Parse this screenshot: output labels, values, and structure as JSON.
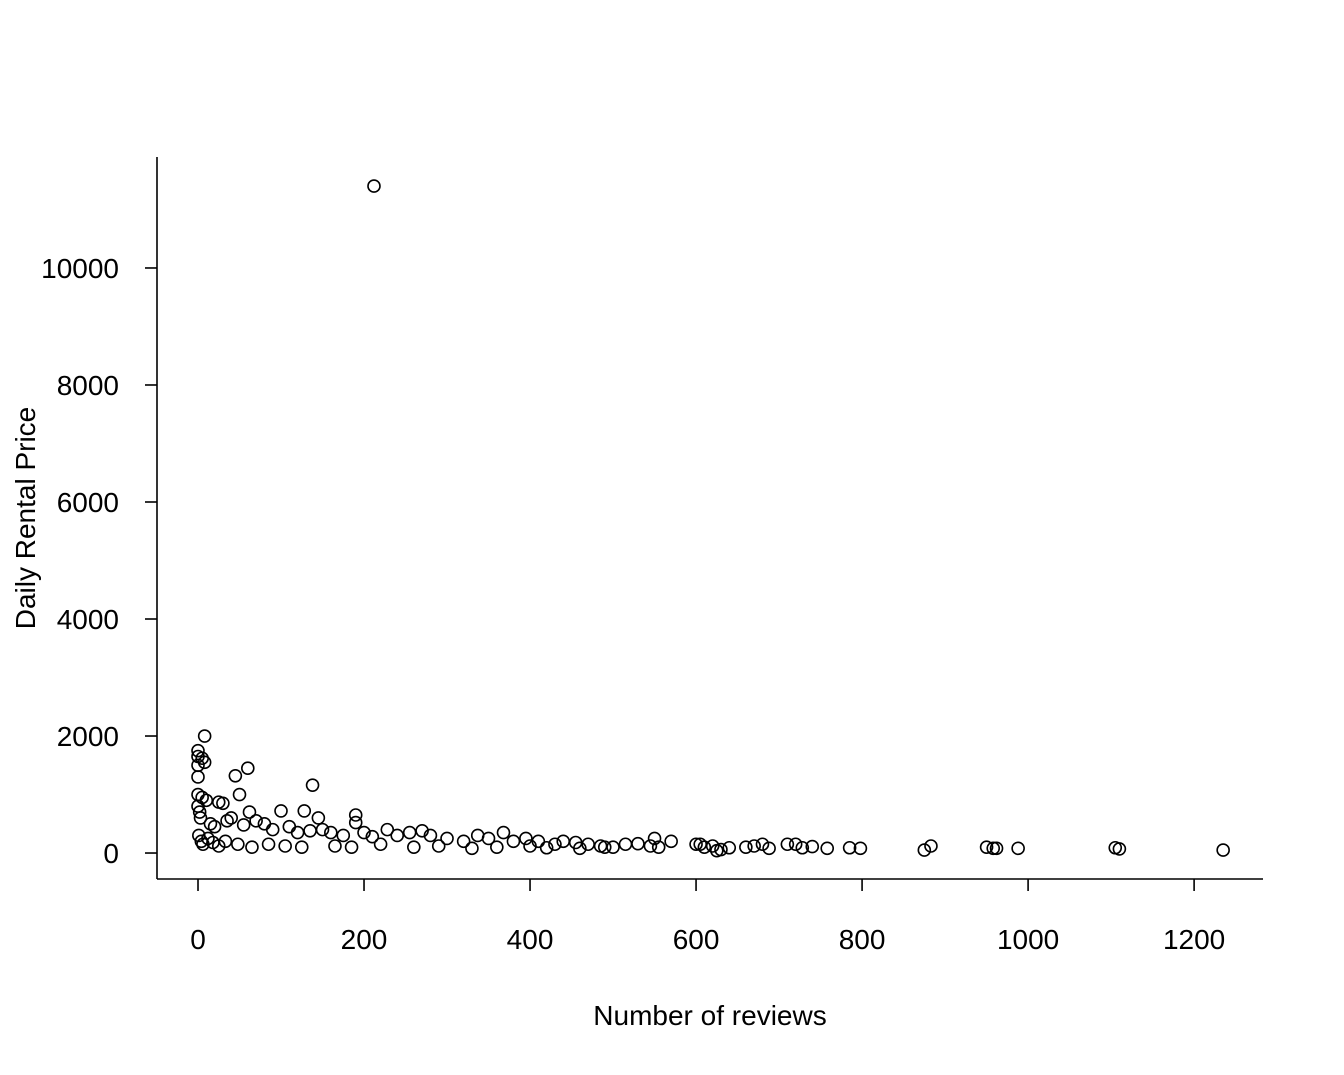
{
  "chart_data": {
    "type": "scatter",
    "xlabel": "Number of reviews",
    "ylabel": "Daily Rental Price",
    "xlim": [
      -49.4,
      1283
    ],
    "ylim": [
      -444,
      11897
    ],
    "xticks": [
      0,
      200,
      400,
      600,
      800,
      1000,
      1200
    ],
    "yticks": [
      0,
      2000,
      4000,
      6000,
      8000,
      10000
    ],
    "color": "#000000",
    "x": [
      212,
      8,
      0,
      0,
      5,
      8,
      0,
      0,
      45,
      60,
      50,
      138,
      100,
      128,
      145,
      190,
      190,
      25,
      30,
      10,
      0,
      5,
      0,
      2,
      3,
      15,
      20,
      35,
      40,
      55,
      62,
      70,
      80,
      90,
      110,
      120,
      135,
      150,
      160,
      175,
      200,
      210,
      228,
      240,
      255,
      270,
      280,
      300,
      320,
      337,
      350,
      368,
      380,
      395,
      410,
      430,
      440,
      455,
      470,
      485,
      500,
      515,
      530,
      545,
      550,
      555,
      570,
      600,
      605,
      610,
      620,
      625,
      630,
      640,
      660,
      670,
      680,
      688,
      710,
      720,
      728,
      740,
      758,
      785,
      798,
      875,
      883,
      950,
      958,
      962,
      988,
      1105,
      1110,
      1235,
      1,
      4,
      6,
      12,
      18,
      25,
      33,
      48,
      65,
      85,
      105,
      125,
      165,
      185,
      220,
      260,
      290,
      330,
      360,
      400,
      420,
      460,
      490
    ],
    "y": [
      11400,
      2000,
      1750,
      1650,
      1620,
      1550,
      1500,
      1300,
      1320,
      1450,
      1000,
      1160,
      720,
      720,
      600,
      650,
      520,
      870,
      850,
      900,
      1000,
      950,
      800,
      700,
      600,
      500,
      450,
      550,
      600,
      480,
      700,
      550,
      500,
      400,
      450,
      350,
      380,
      400,
      350,
      300,
      350,
      280,
      400,
      300,
      350,
      380,
      300,
      250,
      200,
      300,
      250,
      350,
      200,
      250,
      200,
      150,
      200,
      180,
      150,
      120,
      100,
      150,
      160,
      120,
      250,
      100,
      200,
      150,
      150,
      100,
      120,
      40,
      60,
      90,
      100,
      120,
      150,
      80,
      150,
      150,
      90,
      110,
      80,
      90,
      80,
      50,
      120,
      100,
      80,
      80,
      80,
      90,
      70,
      50,
      300,
      200,
      150,
      250,
      180,
      120,
      200,
      150,
      100,
      150,
      120,
      100,
      120,
      100,
      150,
      100,
      120,
      80,
      100,
      120,
      90,
      80,
      100
    ]
  }
}
